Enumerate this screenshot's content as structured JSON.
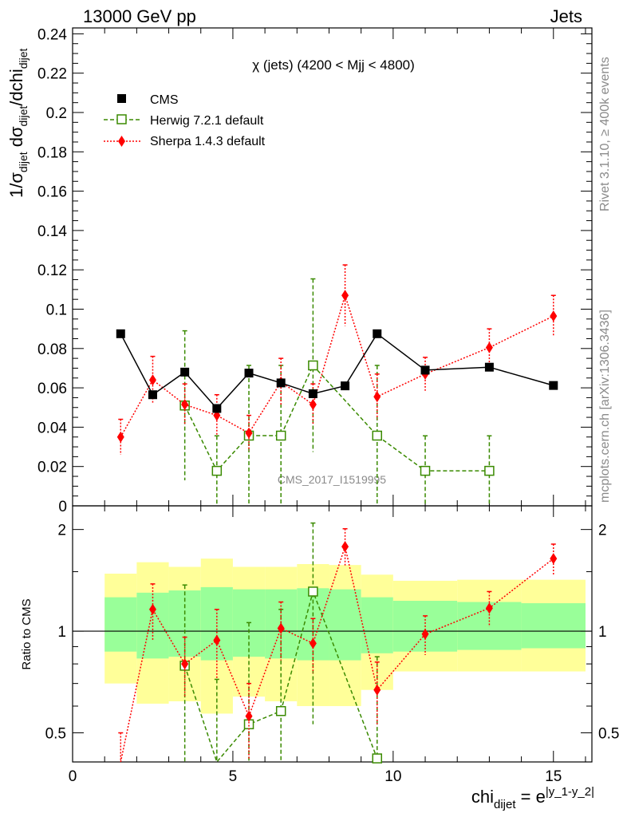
{
  "header": {
    "left": "13000 GeV pp",
    "right": "Jets",
    "title": "χ (jets) (4200 < Mjj < 4800)",
    "watermark": "CMS_2017_I1519995",
    "side_top": "Rivet 3.1.10, ≥ 400k events",
    "side_bottom": "mcplots.cern.ch [arXiv:1306.3436]"
  },
  "colors": {
    "cms": "#000000",
    "herwig": "#3a8a00",
    "sherpa": "#ff0000",
    "band_outer": "#ffff99",
    "band_inner": "#99ff99"
  },
  "chart_data": [
    {
      "type": "scatter",
      "panel": "main",
      "ylabel_main": "1/σ",
      "ylabel_parts": [
        "1/σ",
        "dijet",
        " dσ",
        "dijet",
        "/dchi",
        "dijet"
      ],
      "xlim": [
        0,
        16.2
      ],
      "ylim": [
        0,
        0.243
      ],
      "yticks": [
        "0",
        "0.02",
        "0.04",
        "0.06",
        "0.08",
        "0.1",
        "0.12",
        "0.14",
        "0.16",
        "0.18",
        "0.2",
        "0.22",
        "0.24"
      ],
      "legend_position": "top-left",
      "series": [
        {
          "name": "CMS",
          "x": [
            1.5,
            2.5,
            3.5,
            4.5,
            5.5,
            6.5,
            7.5,
            8.5,
            9.5,
            11,
            13,
            15
          ],
          "y": [
            0.0875,
            0.0565,
            0.068,
            0.0495,
            0.0675,
            0.0625,
            0.057,
            0.061,
            0.0875,
            0.069,
            0.0705,
            0.0612
          ]
        },
        {
          "name": "Herwig 7.2.1 default",
          "x": [
            3.5,
            4.5,
            5.5,
            6.5,
            7.5,
            9.5,
            11,
            13
          ],
          "y": [
            0.051,
            0.0178,
            0.0357,
            0.0357,
            0.0714,
            0.0357,
            0.0178,
            0.0178
          ],
          "err": [
            0.038,
            0.0178,
            0.0357,
            0.0357,
            0.044,
            0.0357,
            0.0178,
            0.0178
          ]
        },
        {
          "name": "Sherpa 1.4.3 default",
          "x": [
            1.5,
            2.5,
            3.5,
            4.5,
            5.5,
            6.5,
            7.5,
            8.5,
            9.5,
            11,
            13,
            15
          ],
          "y": [
            0.035,
            0.064,
            0.0515,
            0.046,
            0.037,
            0.063,
            0.0515,
            0.107,
            0.0555,
            0.067,
            0.0805,
            0.0965
          ],
          "err": [
            0.009,
            0.012,
            0.0105,
            0.0105,
            0.009,
            0.012,
            0.0105,
            0.0155,
            0.0115,
            0.0085,
            0.0095,
            0.0105
          ]
        }
      ]
    },
    {
      "type": "scatter",
      "panel": "ratio",
      "ylabel": "Ratio to CMS",
      "xlabel_base": "chi",
      "xlabel_sub": "dijet",
      "xlabel_eq": " = e",
      "xlabel_sup": "|y_1-y_2|",
      "xlim": [
        0,
        16.2
      ],
      "ylim": [
        0.41,
        2.35
      ],
      "log_scale": true,
      "xticks": [
        "0",
        "5",
        "10",
        "15"
      ],
      "yticks": [
        "0.5",
        "1",
        "2"
      ],
      "bands": {
        "edges": [
          1,
          2,
          3,
          4,
          5,
          6,
          7,
          8,
          9,
          10,
          12,
          14,
          16
        ],
        "inner_low": [
          0.87,
          0.83,
          0.84,
          0.82,
          0.84,
          0.83,
          0.82,
          0.82,
          0.86,
          0.87,
          0.88,
          0.89
        ],
        "inner_high": [
          1.26,
          1.3,
          1.32,
          1.35,
          1.33,
          1.33,
          1.34,
          1.33,
          1.26,
          1.23,
          1.22,
          1.21
        ],
        "outer_low": [
          0.7,
          0.61,
          0.62,
          0.57,
          0.64,
          0.62,
          0.6,
          0.6,
          0.67,
          0.76,
          0.76,
          0.76
        ],
        "outer_high": [
          1.48,
          1.6,
          1.55,
          1.64,
          1.55,
          1.55,
          1.58,
          1.57,
          1.47,
          1.41,
          1.42,
          1.42
        ]
      },
      "series": [
        {
          "name": "Herwig 7.2.1 default",
          "x": [
            3.5,
            4.5,
            5.5,
            6.5,
            7.5,
            9.5
          ],
          "y": [
            0.79,
            0.36,
            0.53,
            0.58,
            1.31,
            0.42
          ],
          "err": [
            0.58,
            0.36,
            0.53,
            0.58,
            0.78,
            0.42
          ]
        },
        {
          "name": "Sherpa 1.4.3 default",
          "x": [
            1.5,
            2.5,
            3.5,
            4.5,
            5.5,
            6.5,
            7.5,
            8.5,
            9.5,
            11,
            13,
            15
          ],
          "y": [
            0.4,
            1.16,
            0.8,
            0.94,
            0.56,
            1.02,
            0.92,
            1.78,
            0.67,
            0.98,
            1.17,
            1.64
          ],
          "err": [
            0.1,
            0.22,
            0.16,
            0.22,
            0.14,
            0.2,
            0.17,
            0.23,
            0.14,
            0.13,
            0.14,
            0.17
          ]
        }
      ]
    }
  ]
}
